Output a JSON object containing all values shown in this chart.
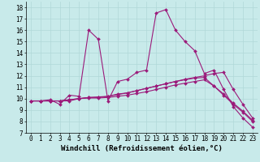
{
  "title": "",
  "xlabel": "Windchill (Refroidissement éolien,°C)",
  "ylabel": "",
  "background_color": "#c8eaea",
  "line_color": "#9b1a7a",
  "ylim": [
    7,
    18.5
  ],
  "xlim": [
    -0.5,
    23.5
  ],
  "yticks": [
    7,
    8,
    9,
    10,
    11,
    12,
    13,
    14,
    15,
    16,
    17,
    18
  ],
  "xticks": [
    0,
    1,
    2,
    3,
    4,
    5,
    6,
    7,
    8,
    9,
    10,
    11,
    12,
    13,
    14,
    15,
    16,
    17,
    18,
    19,
    20,
    21,
    22,
    23
  ],
  "series": [
    [
      9.8,
      9.8,
      9.9,
      9.5,
      10.3,
      10.2,
      16.0,
      15.2,
      9.8,
      11.5,
      11.7,
      12.3,
      12.5,
      17.5,
      17.8,
      16.0,
      15.0,
      14.2,
      12.2,
      12.5,
      10.8,
      9.3,
      8.3,
      7.5
    ],
    [
      9.8,
      9.8,
      9.8,
      9.8,
      9.8,
      10.0,
      10.1,
      10.15,
      10.2,
      10.4,
      10.5,
      10.7,
      10.9,
      11.1,
      11.3,
      11.5,
      11.7,
      11.85,
      12.0,
      12.2,
      12.3,
      10.8,
      9.5,
      8.3
    ],
    [
      9.8,
      9.8,
      9.8,
      9.8,
      9.9,
      10.0,
      10.05,
      10.05,
      10.1,
      10.2,
      10.3,
      10.45,
      10.6,
      10.8,
      11.0,
      11.2,
      11.35,
      11.5,
      11.65,
      11.1,
      10.4,
      9.6,
      8.9,
      8.1
    ],
    [
      9.8,
      9.8,
      9.8,
      9.8,
      9.9,
      10.0,
      10.1,
      10.1,
      10.2,
      10.35,
      10.5,
      10.7,
      10.9,
      11.1,
      11.3,
      11.5,
      11.65,
      11.8,
      11.85,
      11.1,
      10.3,
      9.5,
      8.8,
      8.0
    ]
  ],
  "grid_color": "#b0d8d8",
  "tick_fontsize": 5.5,
  "label_fontsize": 6.5,
  "marker": "D",
  "markersize": 2.0,
  "linewidth": 0.8
}
